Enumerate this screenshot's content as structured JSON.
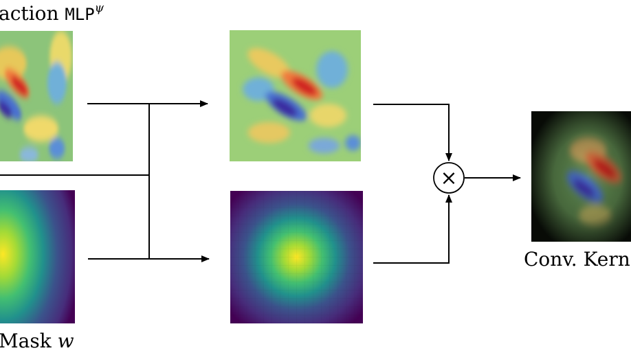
{
  "labels": {
    "mlp_label_text": "action ",
    "mlp_label_mono": "MLP",
    "mlp_label_sup": "ψ",
    "mask_label_text": "Mask ",
    "mask_label_var": "w",
    "conv_label": "Conv. Kerne"
  },
  "operator": {
    "symbol": "×",
    "name": "elementwise-multiply"
  },
  "colors": {
    "line": "#000000",
    "background": "#ffffff"
  }
}
